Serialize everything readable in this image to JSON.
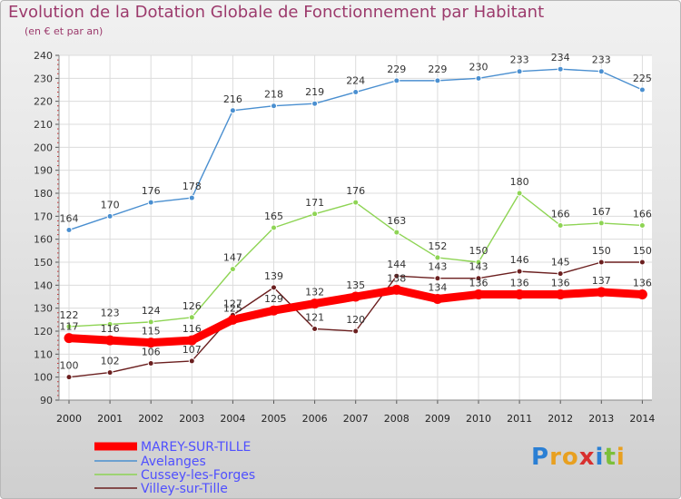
{
  "title": "Evolution de la Dotation Globale de Fonctionnement par Habitant",
  "subtitle": "(en € et par an)",
  "logo": {
    "text": "Proxiti",
    "letters": [
      {
        "ch": "P",
        "color": "#2a7fd4"
      },
      {
        "ch": "r",
        "color": "#e8a020"
      },
      {
        "ch": "o",
        "color": "#e8a020"
      },
      {
        "ch": "x",
        "color": "#d8302f"
      },
      {
        "ch": "i",
        "color": "#2a7fd4"
      },
      {
        "ch": "t",
        "color": "#7cbf3a"
      },
      {
        "ch": "i",
        "color": "#e8a020"
      }
    ]
  },
  "chart_data": {
    "type": "line",
    "x": [
      "2000",
      "2001",
      "2002",
      "2003",
      "2004",
      "2005",
      "2006",
      "2007",
      "2008",
      "2009",
      "2010",
      "2011",
      "2012",
      "2013",
      "2014"
    ],
    "ylim": [
      90,
      240
    ],
    "yticks": [
      90,
      100,
      110,
      120,
      130,
      140,
      150,
      160,
      170,
      180,
      190,
      200,
      210,
      220,
      230,
      240
    ],
    "grid": true,
    "legend_placement": "bottom-left",
    "series": [
      {
        "name": "MAREY-SUR-TILLE",
        "color": "#ff0000",
        "values": [
          117,
          116,
          115,
          116,
          125,
          129,
          132,
          135,
          138,
          134,
          136,
          136,
          136,
          137,
          136
        ]
      },
      {
        "name": "Avelanges",
        "color": "#4a8fd0",
        "values": [
          164,
          170,
          176,
          178,
          216,
          218,
          219,
          224,
          229,
          229,
          230,
          233,
          234,
          233,
          225
        ]
      },
      {
        "name": "Cussey-les-Forges",
        "color": "#8ed454",
        "values": [
          122,
          123,
          124,
          126,
          147,
          165,
          171,
          176,
          163,
          152,
          150,
          180,
          166,
          167,
          166
        ]
      },
      {
        "name": "Villey-sur-Tille",
        "color": "#6b1f1f",
        "values": [
          100,
          102,
          106,
          107,
          127,
          139,
          121,
          120,
          144,
          143,
          143,
          146,
          145,
          150,
          150
        ]
      }
    ]
  }
}
